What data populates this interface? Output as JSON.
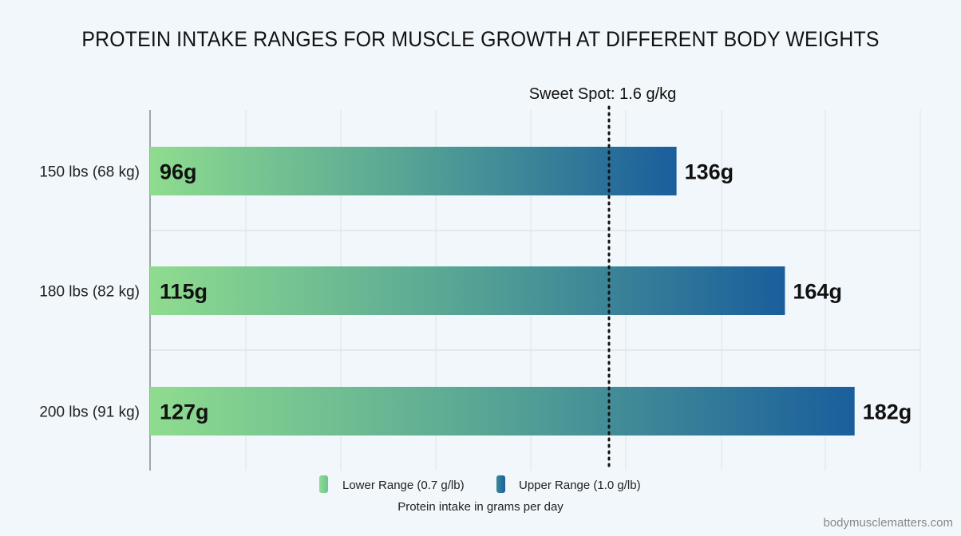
{
  "chart_data": {
    "type": "bar",
    "orientation": "horizontal",
    "title": "PROTEIN INTAKE RANGES FOR MUSCLE GROWTH AT DIFFERENT BODY WEIGHTS",
    "xlabel": "Protein intake in grams per day",
    "categories": [
      "150 lbs (68 kg)",
      "180 lbs (82 kg)",
      "200 lbs (91 kg)"
    ],
    "series": [
      {
        "name": "Lower Range (0.7 g/lb)",
        "values": [
          96,
          115,
          127
        ],
        "labels": [
          "96g",
          "115g",
          "127g"
        ],
        "color": "#8fdc8f"
      },
      {
        "name": "Upper Range (1.0 g/lb)",
        "values": [
          136,
          164,
          182
        ],
        "labels": [
          "136g",
          "164g",
          "182g"
        ],
        "color": "#1a5e9c"
      }
    ],
    "reference_line": {
      "label": "Sweet Spot: 1.6 g/kg",
      "value": 119,
      "style": "dotted"
    },
    "xlim": [
      0,
      200
    ],
    "grid": true,
    "legend": "bottom"
  },
  "source": "bodymusclematters.com"
}
